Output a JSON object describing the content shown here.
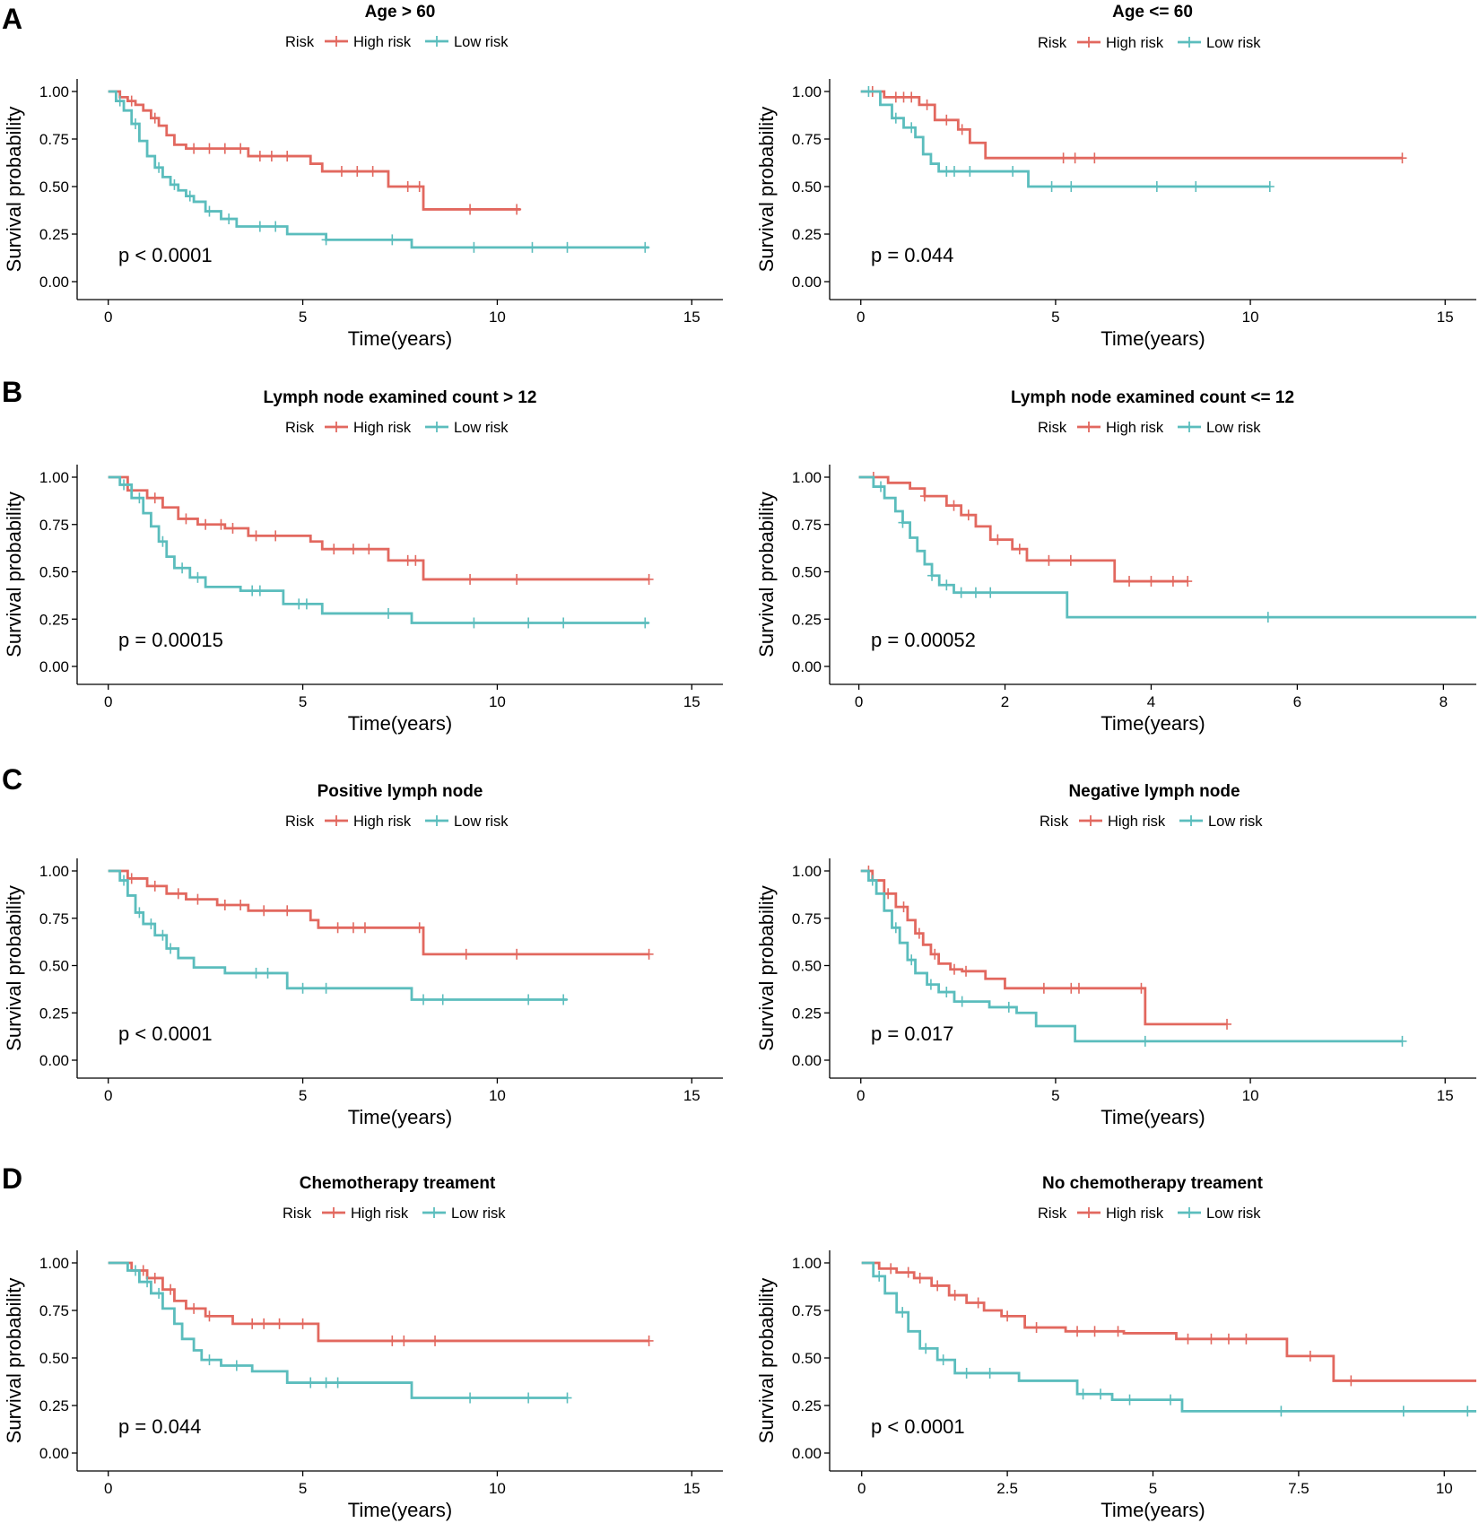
{
  "colors": {
    "high": "#E2685F",
    "low": "#5BBDBD"
  },
  "panel_letters": [
    "A",
    "B",
    "C",
    "D"
  ],
  "chart_data": [
    {
      "type": "line",
      "title": "Age > 60",
      "legend_title": "Risk",
      "legend": [
        "High risk",
        "Low risk"
      ],
      "xlabel": "Time(years)",
      "ylabel": "Survival probability",
      "xlim": [
        -0.8,
        15.8
      ],
      "ylim": [
        0,
        1
      ],
      "xticks": [
        0,
        5,
        10,
        15
      ],
      "xtick_labels": [
        "0",
        "5",
        "10",
        "15"
      ],
      "yticks": [
        0,
        0.25,
        0.5,
        0.75,
        1
      ],
      "ytick_labels": [
        "0.00",
        "0.25",
        "0.50",
        "0.75",
        "1.00"
      ],
      "pvalue": "p < 0.0001",
      "series": [
        {
          "name": "High risk",
          "x": [
            0,
            0.3,
            0.5,
            0.7,
            0.9,
            1.1,
            1.3,
            1.5,
            1.7,
            2.0,
            3.6,
            5.2,
            5.5,
            7.2,
            8.1,
            10.6
          ],
          "y": [
            1,
            0.97,
            0.95,
            0.93,
            0.9,
            0.86,
            0.82,
            0.77,
            0.72,
            0.7,
            0.66,
            0.62,
            0.58,
            0.5,
            0.38,
            0.38
          ],
          "censor_x": [
            0.6,
            1.2,
            2.2,
            2.6,
            3.0,
            3.4,
            3.9,
            4.2,
            4.6,
            6.0,
            6.4,
            6.8,
            7.7,
            8.0,
            9.3,
            10.5
          ]
        },
        {
          "name": "Low risk",
          "x": [
            0,
            0.2,
            0.4,
            0.6,
            0.8,
            1.0,
            1.2,
            1.4,
            1.6,
            1.8,
            2.0,
            2.2,
            2.5,
            2.9,
            3.3,
            4.6,
            5.6,
            7.8,
            13.9
          ],
          "y": [
            1,
            0.95,
            0.9,
            0.83,
            0.74,
            0.66,
            0.6,
            0.55,
            0.51,
            0.48,
            0.45,
            0.42,
            0.37,
            0.33,
            0.29,
            0.25,
            0.22,
            0.18,
            0.18
          ],
          "censor_x": [
            0.3,
            0.7,
            1.3,
            1.7,
            2.1,
            2.6,
            3.1,
            3.9,
            4.3,
            5.6,
            7.3,
            9.4,
            10.9,
            11.8,
            13.8
          ]
        }
      ]
    },
    {
      "type": "line",
      "title": "Age <= 60",
      "legend_title": "Risk",
      "legend": [
        "High risk",
        "Low risk"
      ],
      "xlabel": "Time(years)",
      "ylabel": "Survival probability",
      "xlim": [
        -0.8,
        15.8
      ],
      "ylim": [
        0,
        1
      ],
      "xticks": [
        0,
        5,
        10,
        15
      ],
      "xtick_labels": [
        "0",
        "5",
        "10",
        "15"
      ],
      "yticks": [
        0,
        0.25,
        0.5,
        0.75,
        1
      ],
      "ytick_labels": [
        "0.00",
        "0.25",
        "0.50",
        "0.75",
        "1.00"
      ],
      "pvalue": "p = 0.044",
      "series": [
        {
          "name": "High risk",
          "x": [
            0,
            0.6,
            1.5,
            1.9,
            2.5,
            2.8,
            3.2,
            13.9
          ],
          "y": [
            1,
            0.97,
            0.93,
            0.85,
            0.8,
            0.73,
            0.65,
            0.65
          ],
          "censor_x": [
            0.3,
            0.9,
            1.1,
            1.3,
            1.7,
            2.2,
            2.6,
            5.2,
            5.5,
            6.0,
            13.9
          ]
        },
        {
          "name": "Low risk",
          "x": [
            0,
            0.5,
            0.8,
            1.1,
            1.4,
            1.6,
            1.8,
            2.0,
            4.3,
            10.5
          ],
          "y": [
            1,
            0.93,
            0.86,
            0.81,
            0.76,
            0.67,
            0.62,
            0.58,
            0.5,
            0.5
          ],
          "censor_x": [
            0.2,
            0.9,
            1.3,
            2.2,
            2.4,
            2.8,
            3.9,
            4.9,
            5.4,
            7.6,
            8.6,
            10.5
          ]
        }
      ]
    },
    {
      "type": "line",
      "title": "Lymph node examined count > 12",
      "legend_title": "Risk",
      "legend": [
        "High risk",
        "Low risk"
      ],
      "xlabel": "Time(years)",
      "ylabel": "Survival probability",
      "xlim": [
        -0.8,
        15.8
      ],
      "ylim": [
        0,
        1
      ],
      "xticks": [
        0,
        5,
        10,
        15
      ],
      "xtick_labels": [
        "0",
        "5",
        "10",
        "15"
      ],
      "yticks": [
        0,
        0.25,
        0.5,
        0.75,
        1
      ],
      "ytick_labels": [
        "0.00",
        "0.25",
        "0.50",
        "0.75",
        "1.00"
      ],
      "pvalue": "p = 0.00015",
      "series": [
        {
          "name": "High risk",
          "x": [
            0,
            0.5,
            1.0,
            1.4,
            1.8,
            2.3,
            3.0,
            3.6,
            5.2,
            5.5,
            7.2,
            8.1,
            13.9
          ],
          "y": [
            1,
            0.93,
            0.89,
            0.84,
            0.78,
            0.75,
            0.73,
            0.69,
            0.66,
            0.62,
            0.56,
            0.46,
            0.46
          ],
          "censor_x": [
            0.6,
            1.2,
            2.0,
            2.5,
            2.9,
            3.2,
            3.8,
            4.3,
            5.8,
            6.3,
            6.7,
            7.7,
            7.9,
            9.3,
            10.5,
            13.9
          ]
        },
        {
          "name": "Low risk",
          "x": [
            0,
            0.3,
            0.6,
            0.9,
            1.1,
            1.3,
            1.5,
            1.7,
            2.1,
            2.5,
            3.4,
            4.5,
            5.5,
            7.8,
            13.9
          ],
          "y": [
            1,
            0.96,
            0.89,
            0.81,
            0.74,
            0.66,
            0.58,
            0.52,
            0.47,
            0.42,
            0.4,
            0.33,
            0.28,
            0.23,
            0.23
          ],
          "censor_x": [
            0.4,
            0.8,
            1.4,
            1.9,
            2.3,
            3.7,
            3.9,
            4.9,
            5.1,
            7.2,
            9.4,
            10.8,
            11.7,
            13.8
          ]
        }
      ]
    },
    {
      "type": "line",
      "title": "Lymph node examined count <= 12",
      "legend_title": "Risk",
      "legend": [
        "High risk",
        "Low risk"
      ],
      "xlabel": "Time(years)",
      "ylabel": "Survival probability",
      "xlim": [
        -0.4,
        8.45
      ],
      "ylim": [
        0,
        1
      ],
      "xticks": [
        0,
        2,
        4,
        6,
        8
      ],
      "xtick_labels": [
        "0",
        "2",
        "4",
        "6",
        "8"
      ],
      "yticks": [
        0,
        0.25,
        0.5,
        0.75,
        1
      ],
      "ytick_labels": [
        "0.00",
        "0.25",
        "0.50",
        "0.75",
        "1.00"
      ],
      "pvalue": "p = 0.00052",
      "series": [
        {
          "name": "High risk",
          "x": [
            0,
            0.4,
            0.7,
            0.9,
            1.2,
            1.4,
            1.6,
            1.8,
            2.1,
            2.3,
            3.5,
            4.5
          ],
          "y": [
            1,
            0.97,
            0.94,
            0.9,
            0.85,
            0.8,
            0.74,
            0.67,
            0.62,
            0.56,
            0.45,
            0.45
          ],
          "censor_x": [
            0.2,
            0.9,
            1.3,
            1.5,
            1.9,
            2.2,
            2.6,
            2.9,
            3.7,
            4.0,
            4.3,
            4.5
          ]
        },
        {
          "name": "Low risk",
          "x": [
            0,
            0.2,
            0.35,
            0.5,
            0.6,
            0.7,
            0.8,
            0.9,
            1.0,
            1.1,
            1.3,
            2.85,
            8.45
          ],
          "y": [
            1,
            0.95,
            0.89,
            0.82,
            0.76,
            0.68,
            0.61,
            0.54,
            0.48,
            0.43,
            0.39,
            0.26,
            0.26
          ],
          "censor_x": [
            0.3,
            0.6,
            1.0,
            1.2,
            1.4,
            1.6,
            1.8,
            5.6
          ]
        }
      ]
    },
    {
      "type": "line",
      "title": "Positive lymph node",
      "legend_title": "Risk",
      "legend": [
        "High risk",
        "Low risk"
      ],
      "xlabel": "Time(years)",
      "ylabel": "Survival probability",
      "xlim": [
        -0.8,
        15.8
      ],
      "ylim": [
        0,
        1
      ],
      "xticks": [
        0,
        5,
        10,
        15
      ],
      "xtick_labels": [
        "0",
        "5",
        "10",
        "15"
      ],
      "yticks": [
        0,
        0.25,
        0.5,
        0.75,
        1
      ],
      "ytick_labels": [
        "0.00",
        "0.25",
        "0.50",
        "0.75",
        "1.00"
      ],
      "pvalue": "p < 0.0001",
      "series": [
        {
          "name": "High risk",
          "x": [
            0,
            0.5,
            1.0,
            1.5,
            2.0,
            2.8,
            3.6,
            5.2,
            5.4,
            8.1,
            13.9
          ],
          "y": [
            1,
            0.96,
            0.92,
            0.88,
            0.85,
            0.82,
            0.79,
            0.74,
            0.7,
            0.56,
            0.56
          ],
          "censor_x": [
            0.6,
            1.2,
            1.8,
            2.3,
            3.0,
            3.4,
            4.0,
            4.6,
            5.9,
            6.3,
            6.6,
            8.0,
            9.2,
            10.5,
            13.9
          ]
        },
        {
          "name": "Low risk",
          "x": [
            0,
            0.3,
            0.5,
            0.7,
            0.9,
            1.2,
            1.5,
            1.8,
            2.2,
            3.0,
            4.6,
            7.8,
            11.8
          ],
          "y": [
            1,
            0.95,
            0.87,
            0.78,
            0.72,
            0.66,
            0.59,
            0.54,
            0.49,
            0.46,
            0.38,
            0.32,
            0.32
          ],
          "censor_x": [
            0.4,
            0.8,
            1.1,
            1.4,
            1.6,
            3.8,
            4.1,
            5.0,
            5.6,
            8.1,
            8.6,
            10.8,
            11.7
          ]
        }
      ]
    },
    {
      "type": "line",
      "title": "Negative lymph node",
      "legend_title": "Risk",
      "legend": [
        "High risk",
        "Low risk"
      ],
      "xlabel": "Time(years)",
      "ylabel": "Survival probability",
      "xlim": [
        -0.8,
        15.8
      ],
      "ylim": [
        0,
        1
      ],
      "xticks": [
        0,
        5,
        10,
        15
      ],
      "xtick_labels": [
        "0",
        "5",
        "10",
        "15"
      ],
      "yticks": [
        0,
        0.25,
        0.5,
        0.75,
        1
      ],
      "ytick_labels": [
        "0.00",
        "0.25",
        "0.50",
        "0.75",
        "1.00"
      ],
      "pvalue": "p = 0.017",
      "series": [
        {
          "name": "High risk",
          "x": [
            0,
            0.3,
            0.6,
            0.9,
            1.2,
            1.4,
            1.6,
            1.8,
            2.0,
            2.3,
            2.6,
            3.2,
            3.7,
            7.3,
            9.4
          ],
          "y": [
            1,
            0.95,
            0.88,
            0.81,
            0.74,
            0.67,
            0.61,
            0.56,
            0.51,
            0.48,
            0.47,
            0.43,
            0.38,
            0.19,
            0.19
          ],
          "censor_x": [
            0.2,
            0.7,
            1.1,
            1.5,
            1.9,
            2.4,
            2.7,
            4.7,
            5.4,
            5.6,
            7.2,
            9.4
          ]
        },
        {
          "name": "Low risk",
          "x": [
            0,
            0.2,
            0.4,
            0.6,
            0.8,
            1.0,
            1.2,
            1.4,
            1.7,
            2.0,
            2.4,
            3.3,
            4.0,
            4.5,
            5.5,
            13.9
          ],
          "y": [
            1,
            0.95,
            0.88,
            0.79,
            0.7,
            0.62,
            0.53,
            0.46,
            0.4,
            0.36,
            0.31,
            0.28,
            0.25,
            0.18,
            0.1,
            0.1
          ],
          "censor_x": [
            0.3,
            0.9,
            1.3,
            1.8,
            2.2,
            2.6,
            3.8,
            7.3,
            13.9
          ]
        }
      ]
    },
    {
      "type": "line",
      "title": "Chemotherapy treament",
      "legend_title": "Risk",
      "legend": [
        "High risk",
        "Low risk"
      ],
      "xlabel": "Time(years)",
      "ylabel": "Survival probability",
      "xlim": [
        -0.8,
        15.8
      ],
      "ylim": [
        0,
        1
      ],
      "xticks": [
        0,
        5,
        10,
        15
      ],
      "xtick_labels": [
        "0",
        "5",
        "10",
        "15"
      ],
      "yticks": [
        0,
        0.25,
        0.5,
        0.75,
        1
      ],
      "ytick_labels": [
        "0.00",
        "0.25",
        "0.50",
        "0.75",
        "1.00"
      ],
      "pvalue": "p = 0.044",
      "series": [
        {
          "name": "High risk",
          "x": [
            0,
            0.6,
            1.0,
            1.4,
            1.7,
            2.0,
            2.5,
            3.2,
            5.4,
            13.9
          ],
          "y": [
            1,
            0.96,
            0.92,
            0.86,
            0.8,
            0.76,
            0.72,
            0.68,
            0.59,
            0.59
          ],
          "censor_x": [
            0.9,
            1.2,
            1.6,
            2.2,
            2.6,
            3.7,
            4.0,
            4.4,
            5.0,
            7.3,
            7.6,
            8.4,
            13.9
          ]
        },
        {
          "name": "Low risk",
          "x": [
            0,
            0.5,
            0.8,
            1.1,
            1.4,
            1.7,
            1.9,
            2.2,
            2.4,
            2.9,
            3.7,
            4.6,
            7.8,
            11.8
          ],
          "y": [
            1,
            0.96,
            0.9,
            0.84,
            0.76,
            0.68,
            0.6,
            0.54,
            0.49,
            0.46,
            0.43,
            0.37,
            0.29,
            0.29
          ],
          "censor_x": [
            0.7,
            1.0,
            1.3,
            2.6,
            3.3,
            5.2,
            5.6,
            5.9,
            9.3,
            10.8,
            11.8
          ]
        }
      ]
    },
    {
      "type": "line",
      "title": "No chemotherapy treament",
      "legend_title": "Risk",
      "legend": [
        "High risk",
        "Low risk"
      ],
      "xlabel": "Time(years)",
      "ylabel": "Survival probability",
      "xlim": [
        -0.55,
        10.55
      ],
      "ylim": [
        0,
        1
      ],
      "xticks": [
        0,
        2.5,
        5,
        7.5,
        10
      ],
      "xtick_labels": [
        "0",
        "2.5",
        "5",
        "7.5",
        "10"
      ],
      "yticks": [
        0,
        0.25,
        0.5,
        0.75,
        1
      ],
      "ytick_labels": [
        "0.00",
        "0.25",
        "0.50",
        "0.75",
        "1.00"
      ],
      "pvalue": "p < 0.0001",
      "series": [
        {
          "name": "High risk",
          "x": [
            0,
            0.3,
            0.6,
            0.9,
            1.2,
            1.5,
            1.8,
            2.1,
            2.4,
            2.8,
            3.5,
            4.5,
            5.4,
            7.3,
            8.1,
            10.55
          ],
          "y": [
            1,
            0.97,
            0.95,
            0.92,
            0.88,
            0.83,
            0.79,
            0.75,
            0.72,
            0.66,
            0.64,
            0.63,
            0.6,
            0.51,
            0.38,
            0.38
          ],
          "censor_x": [
            0.5,
            0.8,
            1.0,
            1.3,
            1.6,
            2.0,
            2.5,
            3.0,
            3.7,
            4.0,
            4.4,
            5.6,
            6.0,
            6.3,
            6.6,
            7.7,
            8.4
          ]
        },
        {
          "name": "Low risk",
          "x": [
            0,
            0.2,
            0.4,
            0.6,
            0.8,
            1.0,
            1.3,
            1.6,
            2.7,
            3.7,
            4.3,
            5.5,
            10.55
          ],
          "y": [
            1,
            0.93,
            0.84,
            0.74,
            0.64,
            0.55,
            0.49,
            0.42,
            0.38,
            0.31,
            0.28,
            0.22,
            0.22
          ],
          "censor_x": [
            0.3,
            0.7,
            1.1,
            1.4,
            1.8,
            2.2,
            3.8,
            4.1,
            4.6,
            5.3,
            7.2,
            9.3,
            10.4
          ]
        }
      ]
    }
  ]
}
